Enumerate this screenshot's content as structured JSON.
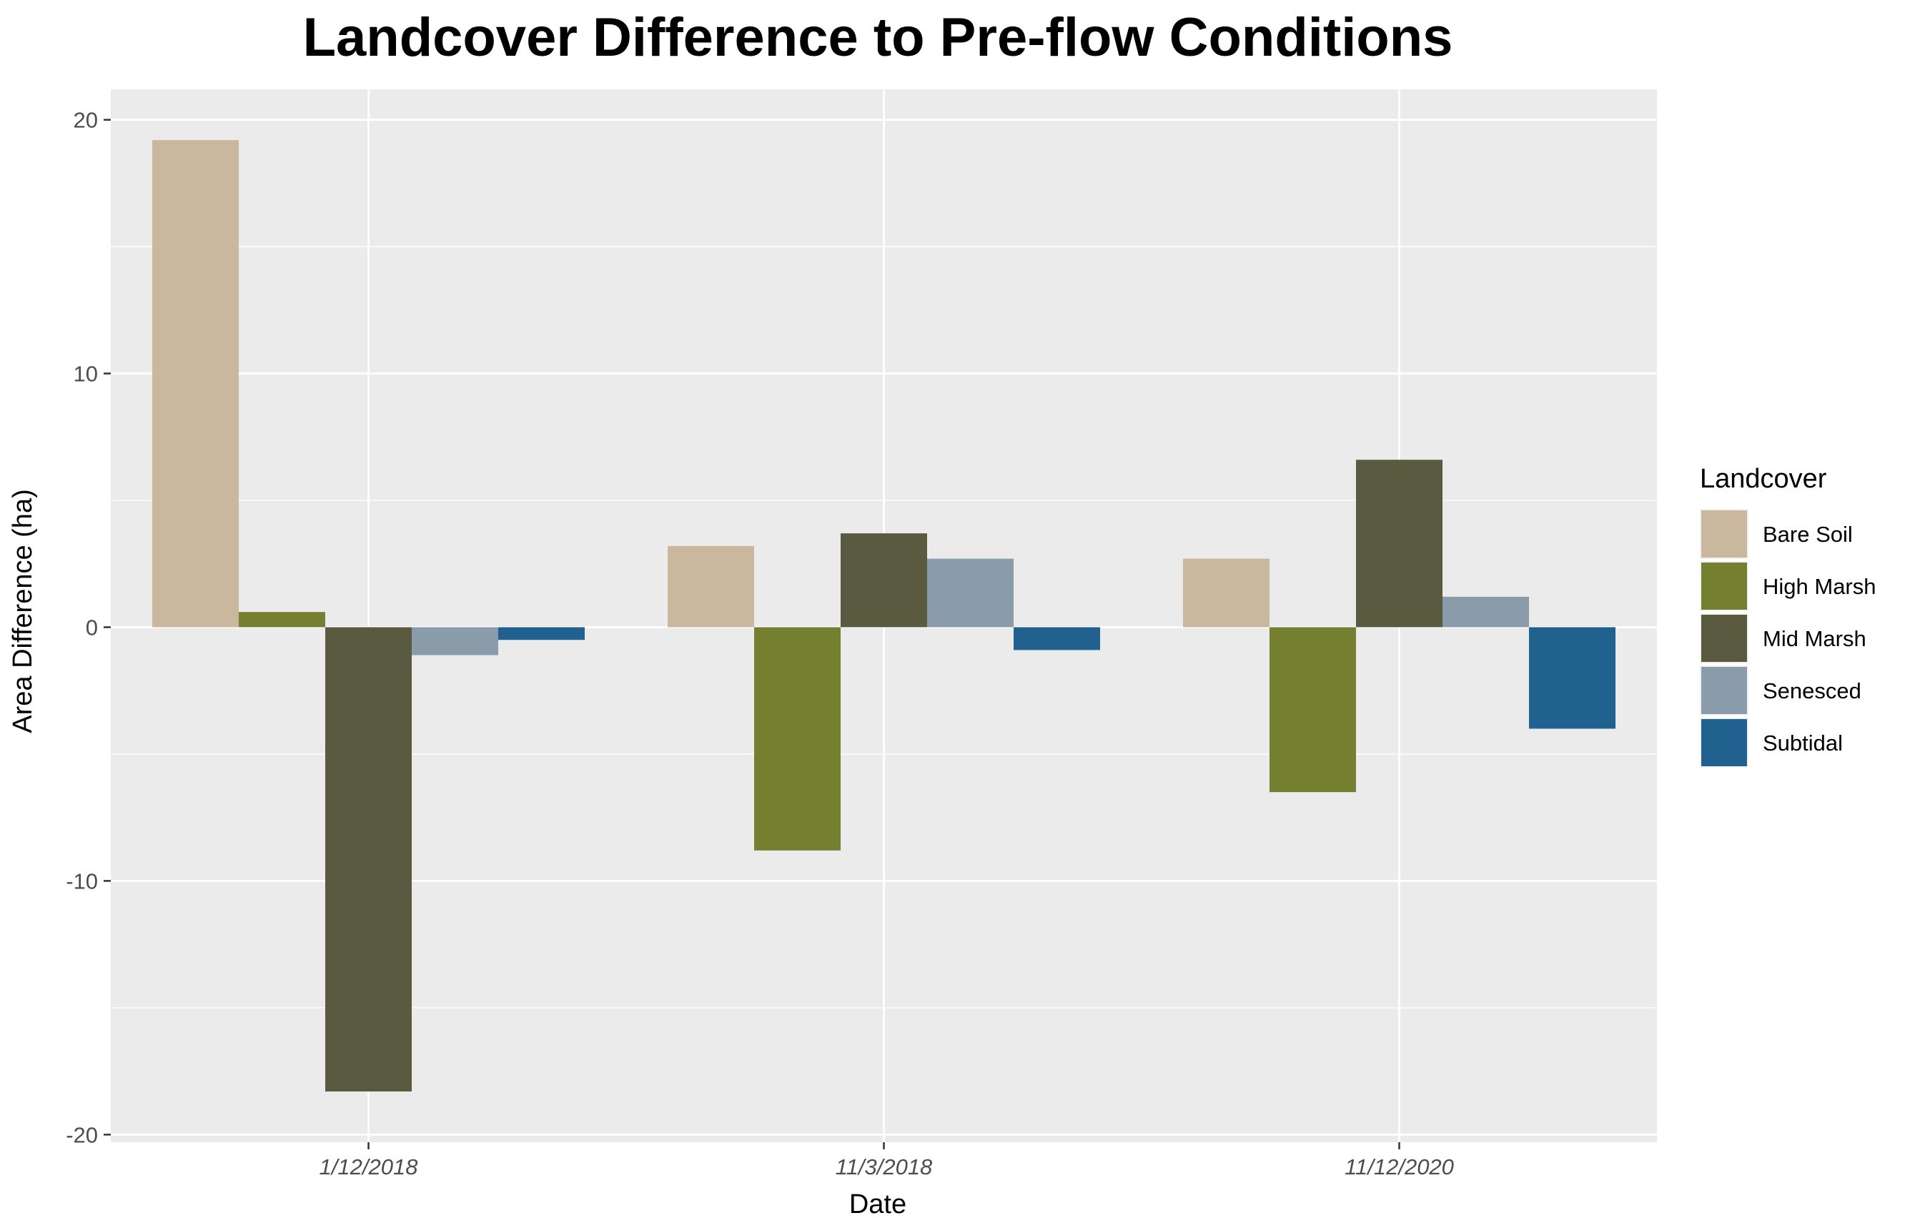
{
  "chart_data": {
    "type": "bar",
    "title": "Landcover Difference to Pre-flow Conditions",
    "xlabel": "Date",
    "ylabel": "Area Difference (ha)",
    "categories": [
      "1/12/2018",
      "11/3/2018",
      "11/12/2020"
    ],
    "ylim": [
      -20.3,
      21.2
    ],
    "yticks": [
      -20,
      -10,
      0,
      10,
      20
    ],
    "grid": true,
    "legend": {
      "title": "Landcover",
      "placement": "right"
    },
    "series": [
      {
        "name": "Bare Soil",
        "color": "#C9B89D",
        "values": [
          19.2,
          3.2,
          2.7
        ]
      },
      {
        "name": "High Marsh",
        "color": "#748030",
        "values": [
          0.6,
          -8.8,
          -6.5
        ]
      },
      {
        "name": "Mid Marsh",
        "color": "#5A5A40",
        "values": [
          -18.3,
          3.7,
          6.6
        ]
      },
      {
        "name": "Senesced",
        "color": "#8A9BAA",
        "values": [
          -1.1,
          2.7,
          1.2
        ]
      },
      {
        "name": "Subtidal",
        "color": "#21618F",
        "values": [
          -0.5,
          -0.9,
          -4.0
        ]
      }
    ],
    "colors": {
      "panel_background": "#EBEBEB",
      "gridline": "#FFFFFF"
    }
  }
}
